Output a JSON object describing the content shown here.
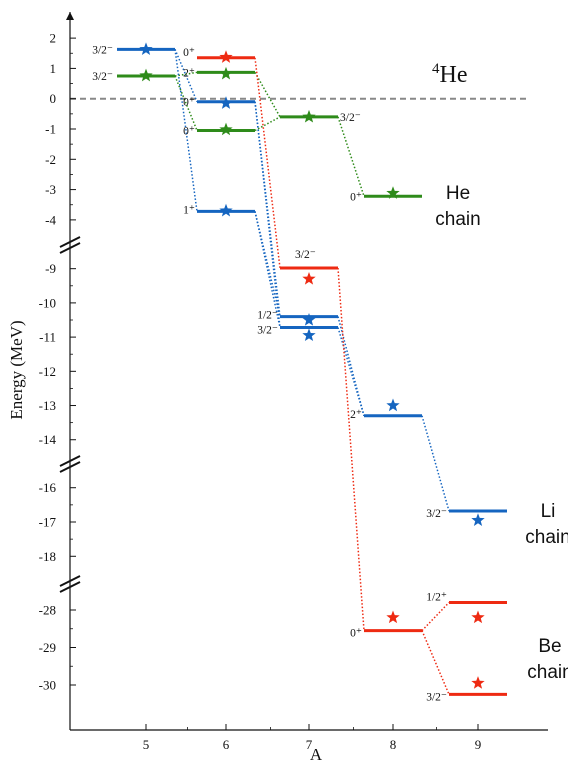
{
  "chart_data": {
    "type": "line",
    "title": "",
    "xlabel": "A",
    "ylabel": "Energy (MeV)",
    "x_ticks": [
      "5",
      "6",
      "7",
      "8",
      "9"
    ],
    "y_ticks": [
      "2",
      "1",
      "0",
      "-1",
      "-2",
      "-3",
      "-4",
      "-9",
      "-10",
      "-11",
      "-12",
      "-13",
      "-14",
      "-16",
      "-17",
      "-18",
      "-28",
      "-29",
      "-30"
    ],
    "y_axis_broken": true,
    "y_segments": [
      [
        -4.4,
        2.4
      ],
      [
        -14.3,
        -8.6
      ],
      [
        -18.4,
        -15.6
      ],
      [
        -30.4,
        -27.6
      ]
    ],
    "reference_level": {
      "energy": 0,
      "label_mass": "4",
      "label_element": "He",
      "style": "dashed"
    },
    "colors": {
      "he_chain": "#2e8b1a",
      "li_chain": "#1565c0",
      "be_chain": "#ee2a12",
      "reference": "#888888"
    },
    "series": [
      {
        "name": "He chain",
        "color": "#2e8b1a",
        "levels": [
          {
            "A": 5,
            "energy": 0.75,
            "label": "3/2⁻",
            "star": 0.76
          },
          {
            "A": 6,
            "energy": 0.87,
            "label": "2⁺",
            "star": 0.82
          },
          {
            "A": 6,
            "energy": -1.05,
            "label": "0⁺",
            "star": -1.02
          },
          {
            "A": 7,
            "energy": -0.6,
            "label": "3/2⁻",
            "star": -0.6
          },
          {
            "A": 8,
            "energy": -3.22,
            "label": "0⁺",
            "star": -3.12
          }
        ],
        "connections": [
          [
            0,
            1
          ],
          [
            0,
            2
          ],
          [
            1,
            3
          ],
          [
            2,
            3
          ],
          [
            3,
            4
          ]
        ]
      },
      {
        "name": "Li chain",
        "color": "#1565c0",
        "levels": [
          {
            "A": 5,
            "energy": 1.63,
            "label": "3/2⁻",
            "star": 1.63
          },
          {
            "A": 6,
            "energy": -0.1,
            "label": "0⁺",
            "star": -0.15
          },
          {
            "A": 6,
            "energy": -3.72,
            "label": "1⁺",
            "star": -3.7
          },
          {
            "A": 7,
            "energy": -10.4,
            "label": "1/2⁻",
            "star": -10.5
          },
          {
            "A": 7,
            "energy": -10.72,
            "label": "3/2⁻",
            "star": -10.95
          },
          {
            "A": 8,
            "energy": -13.3,
            "label": "2⁺",
            "star": -13.0
          },
          {
            "A": 9,
            "energy": -16.68,
            "label": "3/2⁻",
            "star": -16.95
          }
        ],
        "connections": [
          [
            0,
            1
          ],
          [
            0,
            2
          ],
          [
            1,
            3
          ],
          [
            1,
            4
          ],
          [
            2,
            3
          ],
          [
            2,
            4
          ],
          [
            3,
            5
          ],
          [
            4,
            5
          ],
          [
            5,
            6
          ]
        ]
      },
      {
        "name": "Be chain",
        "color": "#ee2a12",
        "levels": [
          {
            "A": 6,
            "energy": 1.35,
            "label": "0⁺",
            "star": 1.37
          },
          {
            "A": 7,
            "energy": -8.98,
            "label": "3/2⁻",
            "star": -9.3
          },
          {
            "A": 8,
            "energy": -28.55,
            "label": "0⁺",
            "star": -28.2
          },
          {
            "A": 9,
            "energy": -27.8,
            "label": "1/2⁺",
            "star": -28.2
          },
          {
            "A": 9,
            "energy": -30.25,
            "label": "3/2⁻",
            "star": -29.95
          }
        ],
        "connections": [
          [
            0,
            1
          ],
          [
            1,
            2
          ],
          [
            2,
            3
          ],
          [
            2,
            4
          ]
        ]
      }
    ],
    "chain_labels": [
      {
        "series": "He chain",
        "lines": [
          "He",
          "chain"
        ]
      },
      {
        "series": "Li chain",
        "lines": [
          "Li",
          "chain"
        ]
      },
      {
        "series": "Be chain",
        "lines": [
          "Be",
          "chain"
        ]
      }
    ]
  }
}
